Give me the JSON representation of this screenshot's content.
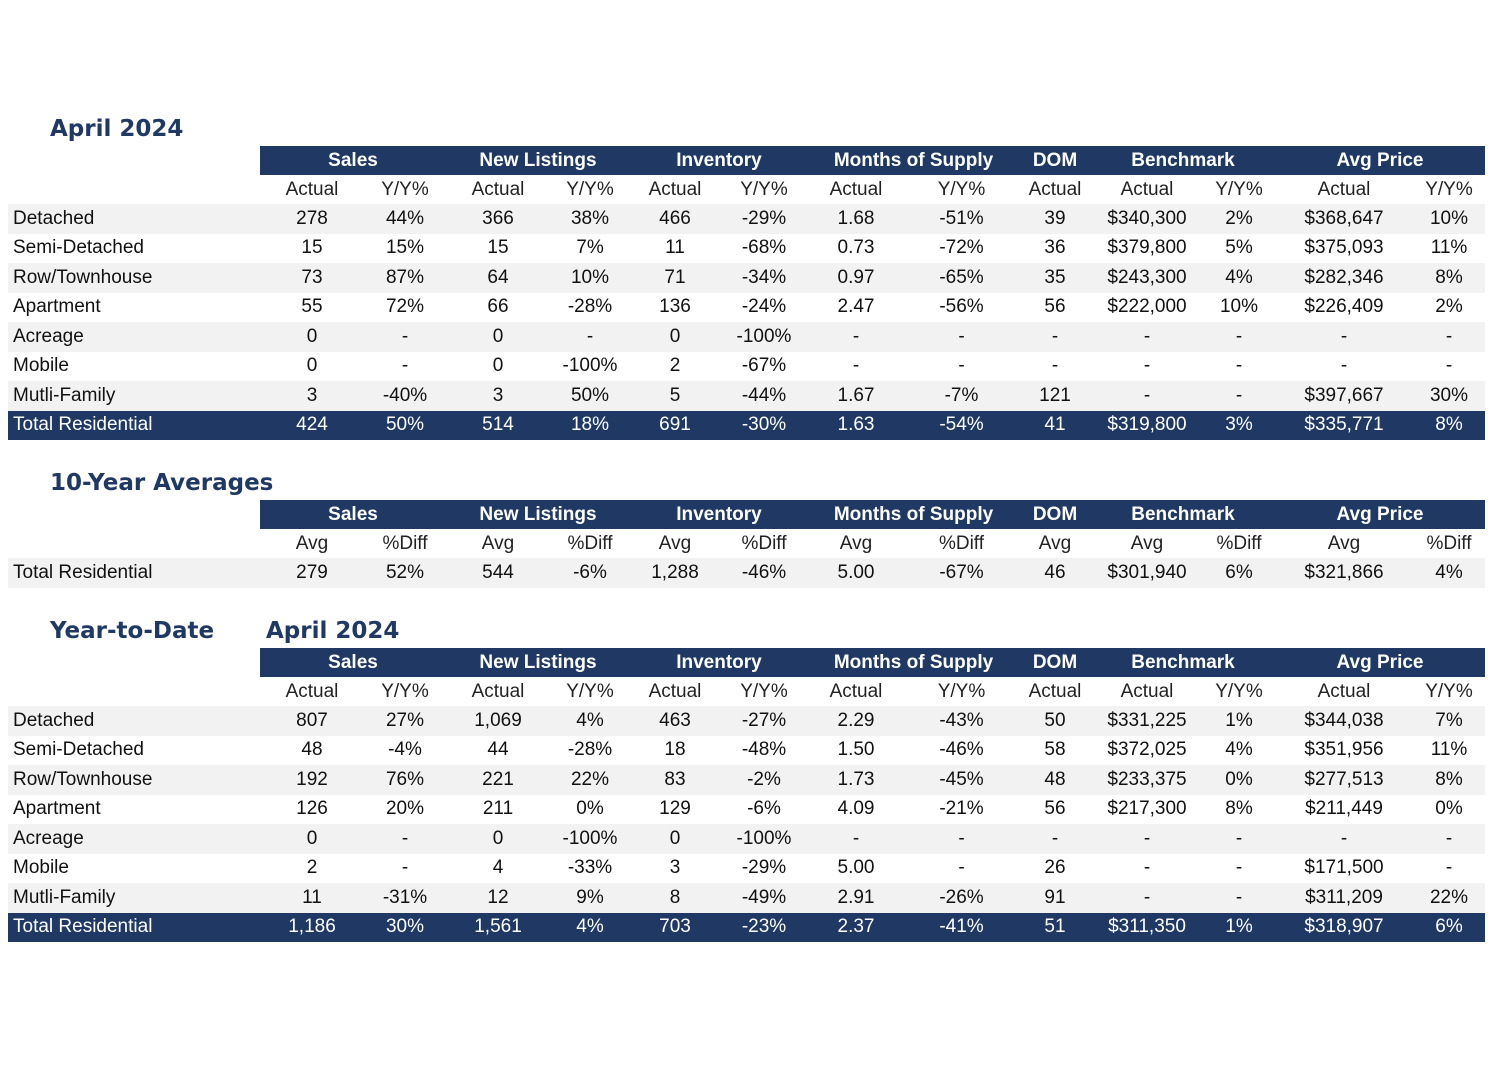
{
  "groups": [
    "Sales",
    "New Listings",
    "Inventory",
    "Months of Supply",
    "DOM",
    "Benchmark",
    "Avg Price"
  ],
  "monthly": {
    "title": "April 2024",
    "subheaders": [
      "Actual",
      "Y/Y%",
      "Actual",
      "Y/Y%",
      "Actual",
      "Y/Y%",
      "Actual",
      "Y/Y%",
      "Actual",
      "Actual",
      "Y/Y%",
      "Actual",
      "Y/Y%"
    ],
    "rows": [
      {
        "label": "Detached",
        "cells": [
          "278",
          "44%",
          "366",
          "38%",
          "466",
          "-29%",
          "1.68",
          "-51%",
          "39",
          "$340,300",
          "2%",
          "$368,647",
          "10%"
        ]
      },
      {
        "label": "Semi-Detached",
        "cells": [
          "15",
          "15%",
          "15",
          "7%",
          "11",
          "-68%",
          "0.73",
          "-72%",
          "36",
          "$379,800",
          "5%",
          "$375,093",
          "11%"
        ]
      },
      {
        "label": "Row/Townhouse",
        "cells": [
          "73",
          "87%",
          "64",
          "10%",
          "71",
          "-34%",
          "0.97",
          "-65%",
          "35",
          "$243,300",
          "4%",
          "$282,346",
          "8%"
        ]
      },
      {
        "label": "Apartment",
        "cells": [
          "55",
          "72%",
          "66",
          "-28%",
          "136",
          "-24%",
          "2.47",
          "-56%",
          "56",
          "$222,000",
          "10%",
          "$226,409",
          "2%"
        ]
      },
      {
        "label": "Acreage",
        "cells": [
          "0",
          "-",
          "0",
          "-",
          "0",
          "-100%",
          "-",
          "-",
          "-",
          "-",
          "-",
          "-",
          "-"
        ]
      },
      {
        "label": "Mobile",
        "cells": [
          "0",
          "-",
          "0",
          "-100%",
          "2",
          "-67%",
          "-",
          "-",
          "-",
          "-",
          "-",
          "-",
          "-"
        ]
      },
      {
        "label": "Mutli-Family",
        "cells": [
          "3",
          "-40%",
          "3",
          "50%",
          "5",
          "-44%",
          "1.67",
          "-7%",
          "121",
          "-",
          "-",
          "$397,667",
          "30%"
        ]
      }
    ],
    "total": {
      "label": "Total Residential",
      "cells": [
        "424",
        "50%",
        "514",
        "18%",
        "691",
        "-30%",
        "1.63",
        "-54%",
        "41",
        "$319,800",
        "3%",
        "$335,771",
        "8%"
      ]
    }
  },
  "averages": {
    "title": "10-Year Averages",
    "subheaders": [
      "Avg",
      "%Diff",
      "Avg",
      "%Diff",
      "Avg",
      "%Diff",
      "Avg",
      "%Diff",
      "Avg",
      "Avg",
      "%Diff",
      "Avg",
      "%Diff"
    ],
    "rows": [
      {
        "label": "Total Residential",
        "cells": [
          "279",
          "52%",
          "544",
          "-6%",
          "1,288",
          "-46%",
          "5.00",
          "-67%",
          "46",
          "$301,940",
          "6%",
          "$321,866",
          "4%"
        ]
      }
    ]
  },
  "ytd": {
    "title": "Year-to-Date",
    "subtitle": "April 2024",
    "subheaders": [
      "Actual",
      "Y/Y%",
      "Actual",
      "Y/Y%",
      "Actual",
      "Y/Y%",
      "Actual",
      "Y/Y%",
      "Actual",
      "Actual",
      "Y/Y%",
      "Actual",
      "Y/Y%"
    ],
    "rows": [
      {
        "label": "Detached",
        "cells": [
          "807",
          "27%",
          "1,069",
          "4%",
          "463",
          "-27%",
          "2.29",
          "-43%",
          "50",
          "$331,225",
          "1%",
          "$344,038",
          "7%"
        ]
      },
      {
        "label": "Semi-Detached",
        "cells": [
          "48",
          "-4%",
          "44",
          "-28%",
          "18",
          "-48%",
          "1.50",
          "-46%",
          "58",
          "$372,025",
          "4%",
          "$351,956",
          "11%"
        ]
      },
      {
        "label": "Row/Townhouse",
        "cells": [
          "192",
          "76%",
          "221",
          "22%",
          "83",
          "-2%",
          "1.73",
          "-45%",
          "48",
          "$233,375",
          "0%",
          "$277,513",
          "8%"
        ]
      },
      {
        "label": "Apartment",
        "cells": [
          "126",
          "20%",
          "211",
          "0%",
          "129",
          "-6%",
          "4.09",
          "-21%",
          "56",
          "$217,300",
          "8%",
          "$211,449",
          "0%"
        ]
      },
      {
        "label": "Acreage",
        "cells": [
          "0",
          "-",
          "0",
          "-100%",
          "0",
          "-100%",
          "-",
          "-",
          "-",
          "-",
          "-",
          "-",
          "-"
        ]
      },
      {
        "label": "Mobile",
        "cells": [
          "2",
          "-",
          "4",
          "-33%",
          "3",
          "-29%",
          "5.00",
          "-",
          "26",
          "-",
          "-",
          "$171,500",
          "-"
        ]
      },
      {
        "label": "Mutli-Family",
        "cells": [
          "11",
          "-31%",
          "12",
          "9%",
          "8",
          "-49%",
          "2.91",
          "-26%",
          "91",
          "-",
          "-",
          "$311,209",
          "22%"
        ]
      }
    ],
    "total": {
      "label": "Total Residential",
      "cells": [
        "1,186",
        "30%",
        "1,561",
        "4%",
        "703",
        "-23%",
        "2.37",
        "-41%",
        "51",
        "$311,350",
        "1%",
        "$318,907",
        "6%"
      ]
    }
  }
}
